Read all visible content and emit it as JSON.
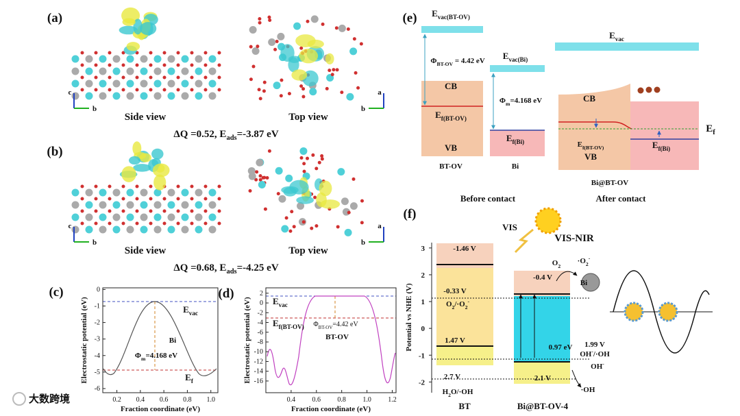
{
  "panel_a": {
    "label": "(a)",
    "side_view": "Side view",
    "top_view": "Top view",
    "side_axes": [
      "c",
      "b"
    ],
    "top_axes": [
      "a",
      "b"
    ],
    "caption": [
      "ΔQ =0.52, E",
      "ads",
      "=-3.87 eV"
    ]
  },
  "panel_b": {
    "label": "(b)",
    "side_view": "Side view",
    "top_view": "Top view",
    "side_axes": [
      "c",
      "b"
    ],
    "top_axes": [
      "a",
      "b"
    ],
    "caption": [
      "ΔQ =0.68, E",
      "ads",
      "=-4.25 eV"
    ]
  },
  "panel_c": {
    "label": "(c)",
    "ylabel": "Electrostatic potential (eV)",
    "xlabel": "Fraction coordinate (eV)",
    "xlim": [
      0.08,
      1.06
    ],
    "ylim": [
      -6.25,
      0.1
    ],
    "xticks": [
      0.2,
      0.4,
      0.6,
      0.8,
      {
        "value": 1.0,
        "label": "1.0"
      }
    ],
    "yticks": [
      0,
      -1,
      -2,
      -3,
      -4,
      -5,
      -6
    ],
    "e_vac": [
      "E",
      "vac"
    ],
    "material": "Bi",
    "work_function": [
      "Φ",
      "m",
      "=4.168 eV"
    ],
    "e_f": [
      "E",
      "f"
    ]
  },
  "panel_d": {
    "label": "(d)",
    "ylabel": "Electrostatic potential (eV)",
    "xlabel": "Fraction coordinate (eV)",
    "xlim": [
      0.2,
      1.23
    ],
    "ylim": [
      -18.4,
      3.1
    ],
    "xticks": [
      0.4,
      0.6,
      0.8,
      {
        "value": 1.0,
        "label": "1.0"
      },
      1.2
    ],
    "yticks": [
      2,
      0,
      -2,
      -4,
      -6,
      -8,
      -10,
      -12,
      -14,
      -16
    ],
    "e_vac": [
      "E",
      "vac"
    ],
    "e_f": [
      "E",
      "f(BT-OV)"
    ],
    "work_function": [
      "Φ",
      "BT-OV",
      "=4.42 eV"
    ],
    "material": "BT-OV"
  },
  "panel_e": {
    "label": "(e)",
    "bt_evac": [
      "E",
      "vac(BT-OV)"
    ],
    "bt_phi": [
      "Φ",
      "BT-OV",
      " = 4.42 eV"
    ],
    "bt_cb": "CB",
    "bt_ef": [
      "E",
      "f(BT-OV)"
    ],
    "bt_vb": "VB",
    "bt_name": "BT-OV",
    "bi_evac": [
      "E",
      "vac(Bi)"
    ],
    "bi_phi": [
      "Φ",
      "m",
      "=4.168 eV"
    ],
    "bi_ef": [
      "E",
      "f(Bi)"
    ],
    "bi_name": "Bi",
    "after_evac": [
      "E",
      "vac"
    ],
    "after_cb": "CB",
    "after_ef_bt": [
      "E",
      "f(BT-OV)"
    ],
    "after_vb": "VB",
    "after_ef_bi": [
      "E",
      "f(Bi)"
    ],
    "after_ef": [
      "E",
      "f"
    ],
    "after_name": "Bi@BT-OV",
    "before_caption": "Before contact",
    "after_caption": "After contact"
  },
  "panel_f": {
    "label": "(f)",
    "vis": "VIS",
    "vis_nir": "VIS-NIR",
    "ylabel": "Potential vs NHE (V)",
    "ylim": [
      -2.4,
      3.2
    ],
    "yticks": [
      -2,
      -1,
      0,
      1,
      2,
      3
    ],
    "bt_cb": "-1.46 V",
    "o2_level": "-0.33 V",
    "o2_couple": [
      "O",
      "2",
      "/·O",
      "2",
      "-"
    ],
    "bt_vb": "1.47 V",
    "oh_level": "2.7 V",
    "h2o_couple": [
      "H",
      "2",
      "O/·OH"
    ],
    "bt_name": "BT",
    "bi_cb": "-0.4 V",
    "o2": [
      "O",
      "2"
    ],
    "o2_radical": [
      "·O",
      "2",
      "-"
    ],
    "bi": "Bi",
    "gap": "0.97 eV",
    "oh_couple_level": "1.99 V",
    "oh_couple": [
      "OH",
      "-",
      "/·OH"
    ],
    "oh_minus": [
      "OH",
      "-"
    ],
    "bi_vb": "2.1 V",
    "oh_radical": "·OH",
    "bi_name": "Bi@BT-OV-4"
  },
  "watermark": "大数跨境"
}
